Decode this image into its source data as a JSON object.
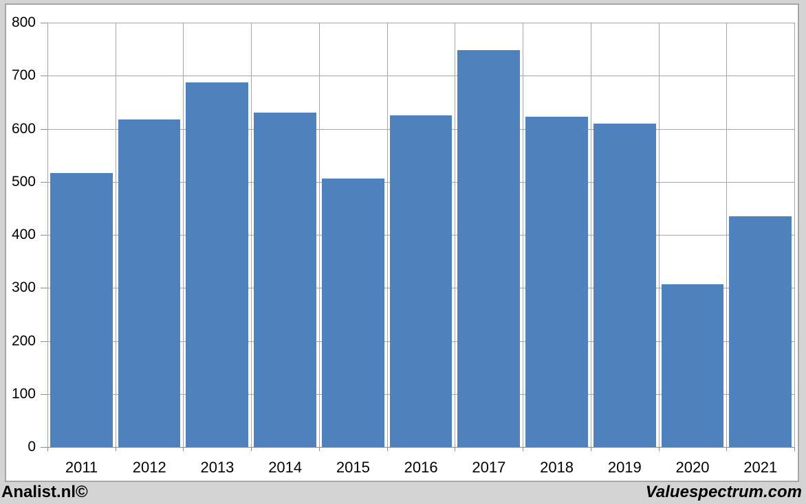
{
  "chart_data": {
    "type": "bar",
    "title": "",
    "xlabel": "",
    "ylabel": "",
    "categories": [
      "2011",
      "2012",
      "2013",
      "2014",
      "2015",
      "2016",
      "2017",
      "2018",
      "2019",
      "2020",
      "2021"
    ],
    "values": [
      517,
      618,
      688,
      631,
      506,
      625,
      748,
      623,
      610,
      307,
      435
    ],
    "ylim": [
      0,
      800
    ],
    "ytick_step": 100,
    "ytick_labels": [
      "0",
      "100",
      "200",
      "300",
      "400",
      "500",
      "600",
      "700",
      "800"
    ],
    "grid": "horizontal and vertical gridlines on",
    "legend_position": "none",
    "bar_color": "#4f81bd"
  },
  "colors": {
    "bar": "#4f81bd",
    "background": "#d4d4d4",
    "frame": "#a6a6a6",
    "grid": "#a6a6a6",
    "axis": "#8c8c8c",
    "text": "#000000"
  },
  "footer": {
    "left_text": "Analist.nl©",
    "right_text": "Valuespectrum.com"
  }
}
